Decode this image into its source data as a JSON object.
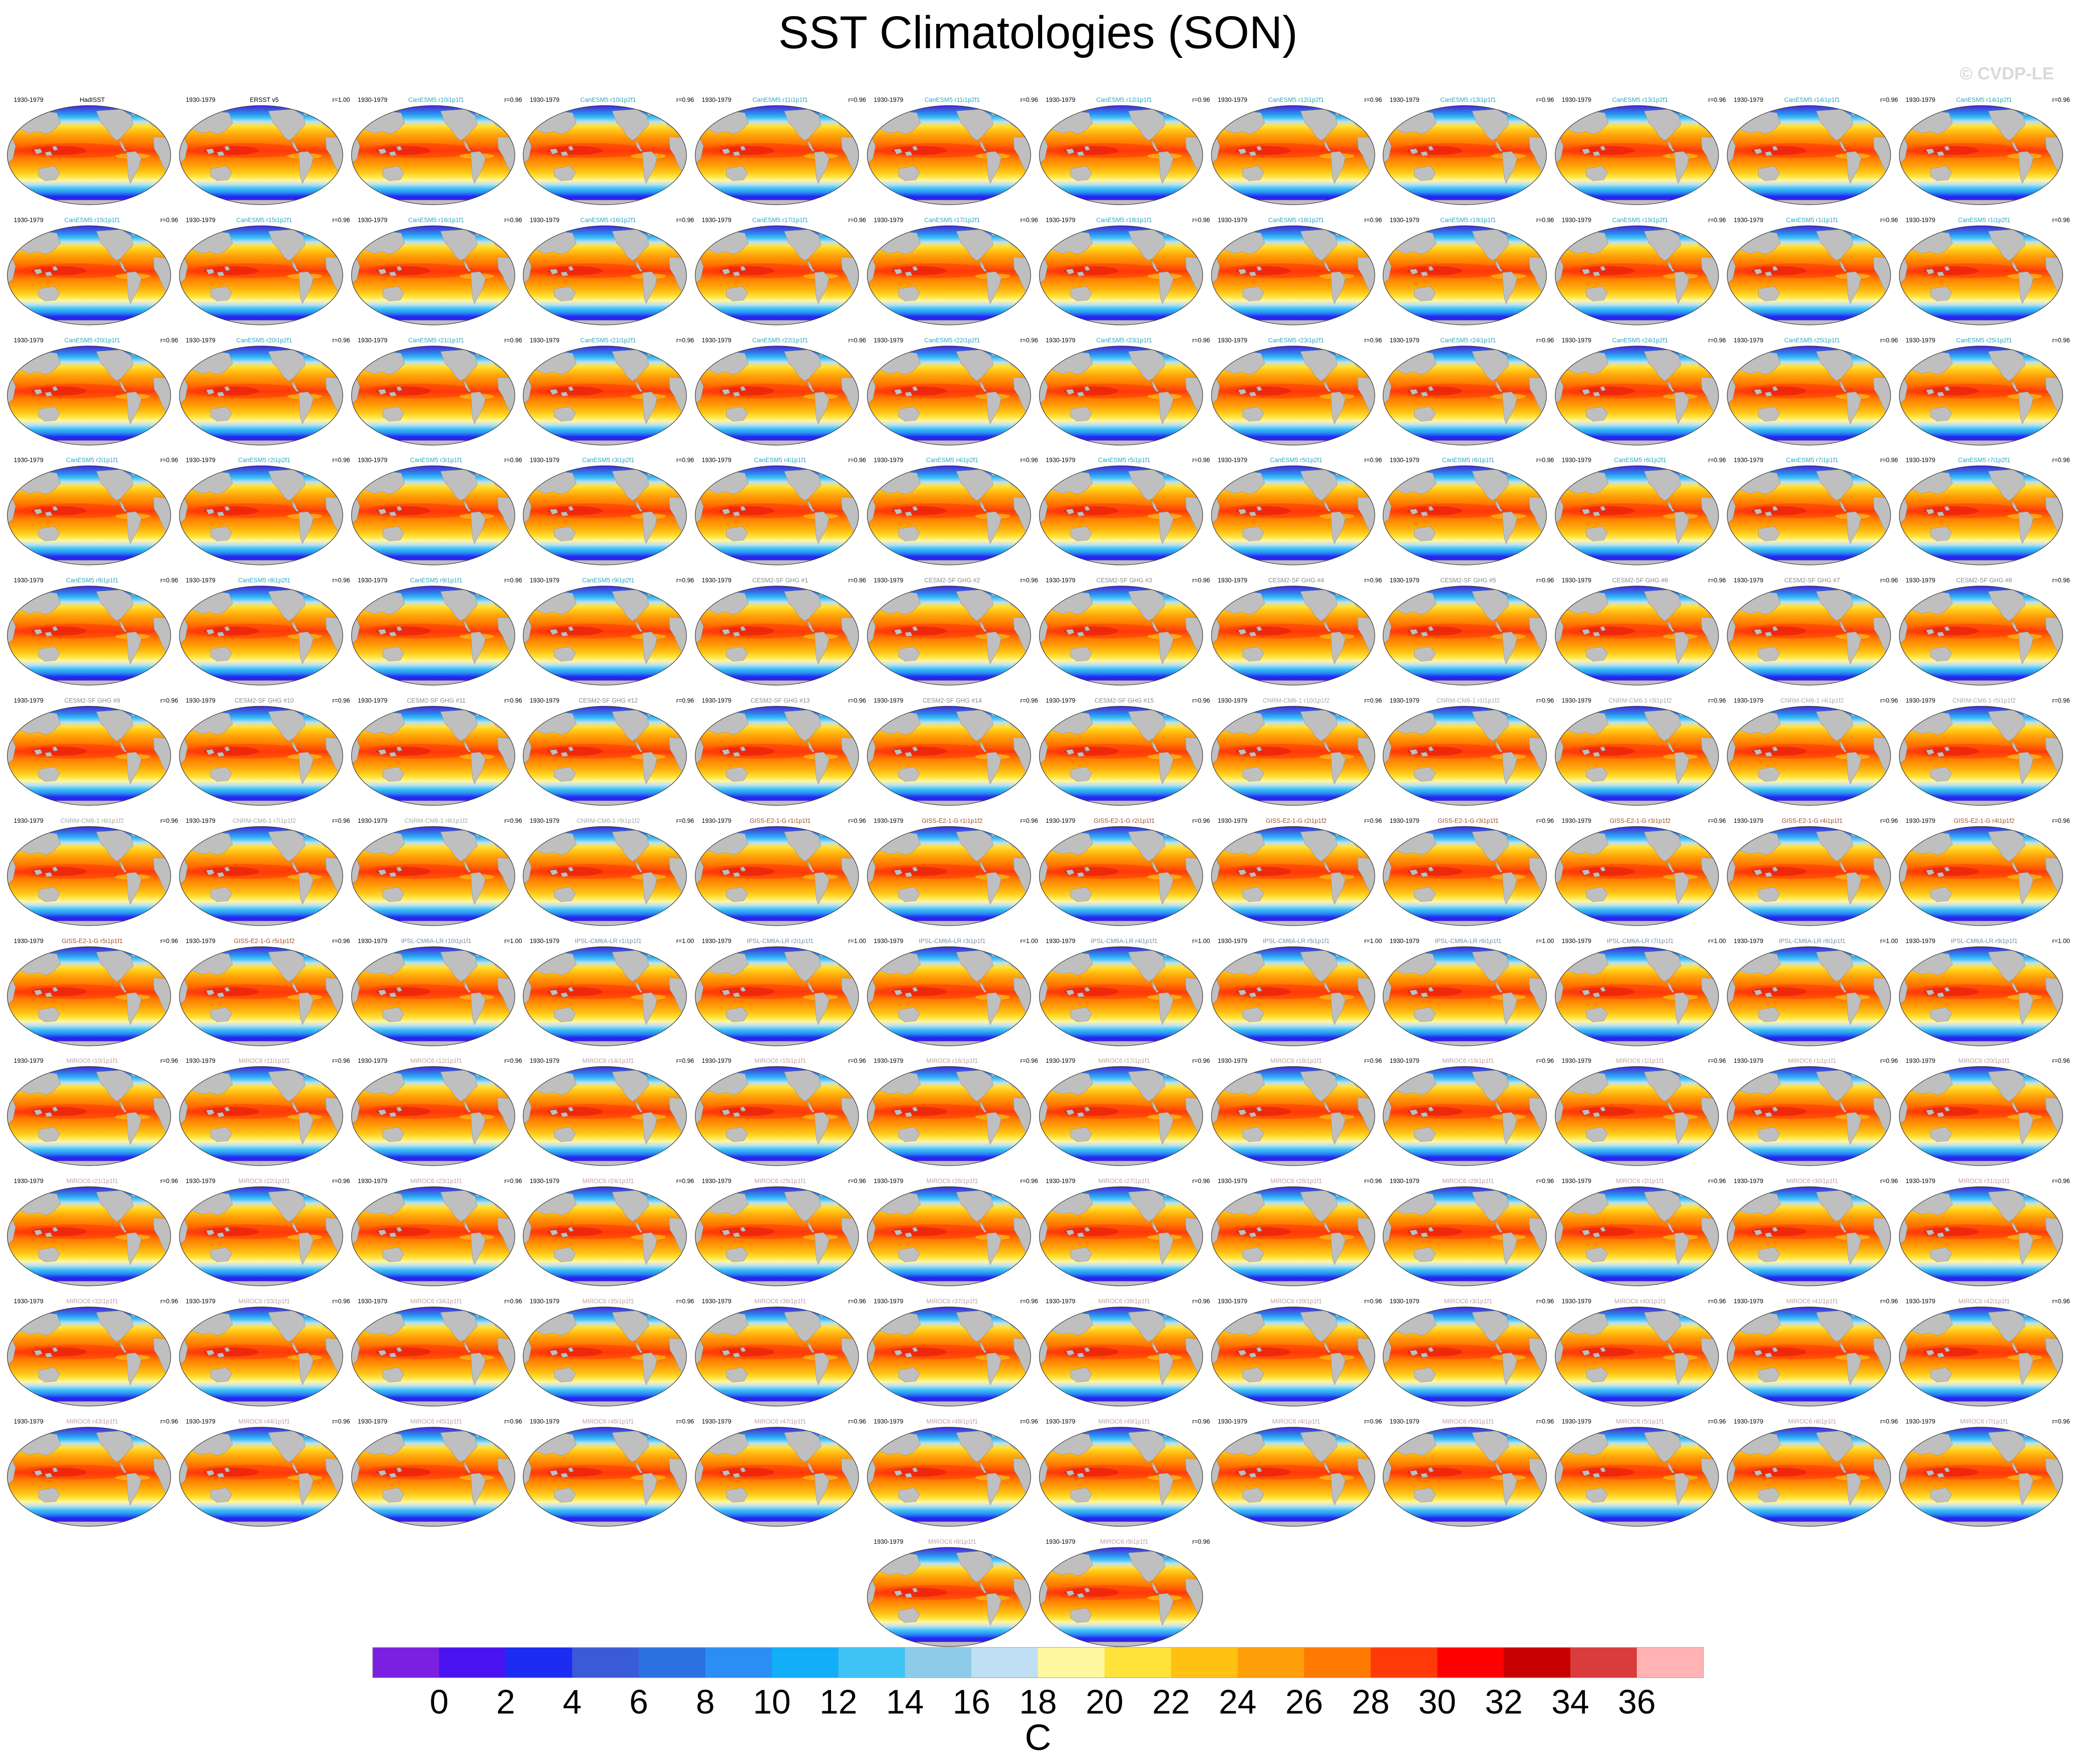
{
  "title": "SST Climatologies (SON)",
  "copyright": "© CVDP-LE",
  "period": "1930-1979",
  "colors": {
    "land": "#bfbfbf",
    "obs_title": "#000000",
    "CanESM5": "#2aa6c4",
    "CESM2-SF GHG": "#8a8a8a",
    "CNRM-CM6-1": "#a9a9a9",
    "GISS-E2-1-G": "#a0522d",
    "IPSL-CM6A-LR": "#7b8fa3",
    "MIROC6": "#c0a0a0"
  },
  "panels": [
    {
      "title": "HadISST",
      "family": "obs",
      "r": ""
    },
    {
      "title": "ERSST v5",
      "family": "obs",
      "r": "r=1.00"
    },
    {
      "title": "CanESM5 r10i1p1f1",
      "family": "CanESM5",
      "r": "r=0.96"
    },
    {
      "title": "CanESM5 r10i1p2f1",
      "family": "CanESM5",
      "r": "r=0.96"
    },
    {
      "title": "CanESM5 r11i1p1f1",
      "family": "CanESM5",
      "r": "r=0.96"
    },
    {
      "title": "CanESM5 r11i1p2f1",
      "family": "CanESM5",
      "r": "r=0.96"
    },
    {
      "title": "CanESM5 r12i1p1f1",
      "family": "CanESM5",
      "r": "r=0.96"
    },
    {
      "title": "CanESM5 r12i1p2f1",
      "family": "CanESM5",
      "r": "r=0.96"
    },
    {
      "title": "CanESM5 r13i1p1f1",
      "family": "CanESM5",
      "r": "r=0.96"
    },
    {
      "title": "CanESM5 r13i1p2f1",
      "family": "CanESM5",
      "r": "r=0.96"
    },
    {
      "title": "CanESM5 r14i1p1f1",
      "family": "CanESM5",
      "r": "r=0.96"
    },
    {
      "title": "CanESM5 r14i1p2f1",
      "family": "CanESM5",
      "r": "r=0.96"
    },
    {
      "title": "CanESM5 r15i1p1f1",
      "family": "CanESM5",
      "r": "r=0.96"
    },
    {
      "title": "CanESM5 r15i1p2f1",
      "family": "CanESM5",
      "r": "r=0.96"
    },
    {
      "title": "CanESM5 r16i1p1f1",
      "family": "CanESM5",
      "r": "r=0.96"
    },
    {
      "title": "CanESM5 r16i1p2f1",
      "family": "CanESM5",
      "r": "r=0.96"
    },
    {
      "title": "CanESM5 r17i1p1f1",
      "family": "CanESM5",
      "r": "r=0.96"
    },
    {
      "title": "CanESM5 r17i1p2f1",
      "family": "CanESM5",
      "r": "r=0.96"
    },
    {
      "title": "CanESM5 r18i1p1f1",
      "family": "CanESM5",
      "r": "r=0.96"
    },
    {
      "title": "CanESM5 r18i1p2f1",
      "family": "CanESM5",
      "r": "r=0.96"
    },
    {
      "title": "CanESM5 r19i1p1f1",
      "family": "CanESM5",
      "r": "r=0.96"
    },
    {
      "title": "CanESM5 r19i1p2f1",
      "family": "CanESM5",
      "r": "r=0.96"
    },
    {
      "title": "CanESM5 r1i1p1f1",
      "family": "CanESM5",
      "r": "r=0.96"
    },
    {
      "title": "CanESM5 r1i1p2f1",
      "family": "CanESM5",
      "r": "r=0.96"
    },
    {
      "title": "CanESM5 r20i1p1f1",
      "family": "CanESM5",
      "r": "r=0.96"
    },
    {
      "title": "CanESM5 r20i1p2f1",
      "family": "CanESM5",
      "r": "r=0.96"
    },
    {
      "title": "CanESM5 r21i1p1f1",
      "family": "CanESM5",
      "r": "r=0.96"
    },
    {
      "title": "CanESM5 r21i1p2f1",
      "family": "CanESM5",
      "r": "r=0.96"
    },
    {
      "title": "CanESM5 r22i1p1f1",
      "family": "CanESM5",
      "r": "r=0.96"
    },
    {
      "title": "CanESM5 r22i1p2f1",
      "family": "CanESM5",
      "r": "r=0.96"
    },
    {
      "title": "CanESM5 r23i1p1f1",
      "family": "CanESM5",
      "r": "r=0.96"
    },
    {
      "title": "CanESM5 r23i1p2f1",
      "family": "CanESM5",
      "r": "r=0.96"
    },
    {
      "title": "CanESM5 r24i1p1f1",
      "family": "CanESM5",
      "r": "r=0.96"
    },
    {
      "title": "CanESM5 r24i1p2f1",
      "family": "CanESM5",
      "r": "r=0.96"
    },
    {
      "title": "CanESM5 r25i1p1f1",
      "family": "CanESM5",
      "r": "r=0.96"
    },
    {
      "title": "CanESM5 r25i1p2f1",
      "family": "CanESM5",
      "r": "r=0.96"
    },
    {
      "title": "CanESM5 r2i1p1f1",
      "family": "CanESM5",
      "r": "r=0.96"
    },
    {
      "title": "CanESM5 r2i1p2f1",
      "family": "CanESM5",
      "r": "r=0.96"
    },
    {
      "title": "CanESM5 r3i1p1f1",
      "family": "CanESM5",
      "r": "r=0.96"
    },
    {
      "title": "CanESM5 r3i1p2f1",
      "family": "CanESM5",
      "r": "r=0.96"
    },
    {
      "title": "CanESM5 r4i1p1f1",
      "family": "CanESM5",
      "r": "r=0.96"
    },
    {
      "title": "CanESM5 r4i1p2f1",
      "family": "CanESM5",
      "r": "r=0.96"
    },
    {
      "title": "CanESM5 r5i1p1f1",
      "family": "CanESM5",
      "r": "r=0.96"
    },
    {
      "title": "CanESM5 r5i1p2f1",
      "family": "CanESM5",
      "r": "r=0.96"
    },
    {
      "title": "CanESM5 r6i1p1f1",
      "family": "CanESM5",
      "r": "r=0.96"
    },
    {
      "title": "CanESM5 r6i1p2f1",
      "family": "CanESM5",
      "r": "r=0.96"
    },
    {
      "title": "CanESM5 r7i1p1f1",
      "family": "CanESM5",
      "r": "r=0.96"
    },
    {
      "title": "CanESM5 r7i1p2f1",
      "family": "CanESM5",
      "r": "r=0.96"
    },
    {
      "title": "CanESM5 r8i1p1f1",
      "family": "CanESM5",
      "r": "r=0.96"
    },
    {
      "title": "CanESM5 r8i1p2f1",
      "family": "CanESM5",
      "r": "r=0.96"
    },
    {
      "title": "CanESM5 r9i1p1f1",
      "family": "CanESM5",
      "r": "r=0.96"
    },
    {
      "title": "CanESM5 r9i1p2f1",
      "family": "CanESM5",
      "r": "r=0.96"
    },
    {
      "title": "CESM2-SF GHG #1",
      "family": "CESM2-SF GHG",
      "r": "r=0.96"
    },
    {
      "title": "CESM2-SF GHG #2",
      "family": "CESM2-SF GHG",
      "r": "r=0.96"
    },
    {
      "title": "CESM2-SF GHG #3",
      "family": "CESM2-SF GHG",
      "r": "r=0.96"
    },
    {
      "title": "CESM2-SF GHG #4",
      "family": "CESM2-SF GHG",
      "r": "r=0.96"
    },
    {
      "title": "CESM2-SF GHG #5",
      "family": "CESM2-SF GHG",
      "r": "r=0.96"
    },
    {
      "title": "CESM2-SF GHG #6",
      "family": "CESM2-SF GHG",
      "r": "r=0.96"
    },
    {
      "title": "CESM2-SF GHG #7",
      "family": "CESM2-SF GHG",
      "r": "r=0.96"
    },
    {
      "title": "CESM2-SF GHG #8",
      "family": "CESM2-SF GHG",
      "r": "r=0.96"
    },
    {
      "title": "CESM2-SF GHG #9",
      "family": "CESM2-SF GHG",
      "r": "r=0.96"
    },
    {
      "title": "CESM2-SF GHG #10",
      "family": "CESM2-SF GHG",
      "r": "r=0.96"
    },
    {
      "title": "CESM2-SF GHG #11",
      "family": "CESM2-SF GHG",
      "r": "r=0.96"
    },
    {
      "title": "CESM2-SF GHG #12",
      "family": "CESM2-SF GHG",
      "r": "r=0.96"
    },
    {
      "title": "CESM2-SF GHG #13",
      "family": "CESM2-SF GHG",
      "r": "r=0.96"
    },
    {
      "title": "CESM2-SF GHG #14",
      "family": "CESM2-SF GHG",
      "r": "r=0.96"
    },
    {
      "title": "CESM2-SF GHG #15",
      "family": "CESM2-SF GHG",
      "r": "r=0.96"
    },
    {
      "title": "CNRM-CM6-1 r10i1p1f2",
      "family": "CNRM-CM6-1",
      "r": "r=0.96"
    },
    {
      "title": "CNRM-CM6-1 r1i1p1f2",
      "family": "CNRM-CM6-1",
      "r": "r=0.96"
    },
    {
      "title": "CNRM-CM6-1 r3i1p1f2",
      "family": "CNRM-CM6-1",
      "r": "r=0.96"
    },
    {
      "title": "CNRM-CM6-1 r4i1p1f2",
      "family": "CNRM-CM6-1",
      "r": "r=0.96"
    },
    {
      "title": "CNRM-CM6-1 r5i1p1f2",
      "family": "CNRM-CM6-1",
      "r": "r=0.96"
    },
    {
      "title": "CNRM-CM6-1 r6i1p1f2",
      "family": "CNRM-CM6-1",
      "r": "r=0.96"
    },
    {
      "title": "CNRM-CM6-1 r7i1p1f2",
      "family": "CNRM-CM6-1",
      "r": "r=0.96"
    },
    {
      "title": "CNRM-CM6-1 r8i1p1f2",
      "family": "CNRM-CM6-1",
      "r": "r=0.96"
    },
    {
      "title": "CNRM-CM6-1 r9i1p1f2",
      "family": "CNRM-CM6-1",
      "r": "r=0.96"
    },
    {
      "title": "GISS-E2-1-G r1i1p1f1",
      "family": "GISS-E2-1-G",
      "r": "r=0.96"
    },
    {
      "title": "GISS-E2-1-G r1i1p1f2",
      "family": "GISS-E2-1-G",
      "r": "r=0.96"
    },
    {
      "title": "GISS-E2-1-G r2i1p1f1",
      "family": "GISS-E2-1-G",
      "r": "r=0.96"
    },
    {
      "title": "GISS-E2-1-G r2i1p1f2",
      "family": "GISS-E2-1-G",
      "r": "r=0.96"
    },
    {
      "title": "GISS-E2-1-G r3i1p1f1",
      "family": "GISS-E2-1-G",
      "r": "r=0.96"
    },
    {
      "title": "GISS-E2-1-G r3i1p1f2",
      "family": "GISS-E2-1-G",
      "r": "r=0.96"
    },
    {
      "title": "GISS-E2-1-G r4i1p1f1",
      "family": "GISS-E2-1-G",
      "r": "r=0.96"
    },
    {
      "title": "GISS-E2-1-G r4i1p1f2",
      "family": "GISS-E2-1-G",
      "r": "r=0.96"
    },
    {
      "title": "GISS-E2-1-G r5i1p1f1",
      "family": "GISS-E2-1-G",
      "r": "r=0.96"
    },
    {
      "title": "GISS-E2-1-G r5i1p1f2",
      "family": "GISS-E2-1-G",
      "r": "r=0.96"
    },
    {
      "title": "IPSL-CM6A-LR r10i1p1f1",
      "family": "IPSL-CM6A-LR",
      "r": "r=1.00"
    },
    {
      "title": "IPSL-CM6A-LR r1i1p1f1",
      "family": "IPSL-CM6A-LR",
      "r": "r=1.00"
    },
    {
      "title": "IPSL-CM6A-LR r2i1p1f1",
      "family": "IPSL-CM6A-LR",
      "r": "r=1.00"
    },
    {
      "title": "IPSL-CM6A-LR r3i1p1f1",
      "family": "IPSL-CM6A-LR",
      "r": "r=1.00"
    },
    {
      "title": "IPSL-CM6A-LR r4i1p1f1",
      "family": "IPSL-CM6A-LR",
      "r": "r=1.00"
    },
    {
      "title": "IPSL-CM6A-LR r5i1p1f1",
      "family": "IPSL-CM6A-LR",
      "r": "r=1.00"
    },
    {
      "title": "IPSL-CM6A-LR r6i1p1f1",
      "family": "IPSL-CM6A-LR",
      "r": "r=1.00"
    },
    {
      "title": "IPSL-CM6A-LR r7i1p1f1",
      "family": "IPSL-CM6A-LR",
      "r": "r=1.00"
    },
    {
      "title": "IPSL-CM6A-LR r8i1p1f1",
      "family": "IPSL-CM6A-LR",
      "r": "r=1.00"
    },
    {
      "title": "IPSL-CM6A-LR r9i1p1f1",
      "family": "IPSL-CM6A-LR",
      "r": "r=1.00"
    },
    {
      "title": "MIROC6 r10i1p1f1",
      "family": "MIROC6",
      "r": "r=0.96"
    },
    {
      "title": "MIROC6 r11i1p1f1",
      "family": "MIROC6",
      "r": "r=0.96"
    },
    {
      "title": "MIROC6 r12i1p1f1",
      "family": "MIROC6",
      "r": "r=0.96"
    },
    {
      "title": "MIROC6 r14i1p1f1",
      "family": "MIROC6",
      "r": "r=0.96"
    },
    {
      "title": "MIROC6 r15i1p1f1",
      "family": "MIROC6",
      "r": "r=0.96"
    },
    {
      "title": "MIROC6 r16i1p1f1",
      "family": "MIROC6",
      "r": "r=0.96"
    },
    {
      "title": "MIROC6 r17i1p1f1",
      "family": "MIROC6",
      "r": "r=0.96"
    },
    {
      "title": "MIROC6 r18i1p1f1",
      "family": "MIROC6",
      "r": "r=0.96"
    },
    {
      "title": "MIROC6 r19i1p1f1",
      "family": "MIROC6",
      "r": "r=0.96"
    },
    {
      "title": "MIROC6 r1i1p1f1",
      "family": "MIROC6",
      "r": "r=0.96"
    },
    {
      "title": "MIROC6 r1i1p1f1",
      "family": "MIROC6",
      "r": "r=0.96"
    },
    {
      "title": "MIROC6 r20i1p1f1",
      "family": "MIROC6",
      "r": "r=0.96"
    },
    {
      "title": "MIROC6 r21i1p1f1",
      "family": "MIROC6",
      "r": "r=0.96"
    },
    {
      "title": "MIROC6 r22i1p1f1",
      "family": "MIROC6",
      "r": "r=0.96"
    },
    {
      "title": "MIROC6 r23i1p1f1",
      "family": "MIROC6",
      "r": "r=0.96"
    },
    {
      "title": "MIROC6 r24i1p1f1",
      "family": "MIROC6",
      "r": "r=0.96"
    },
    {
      "title": "MIROC6 r25i1p1f1",
      "family": "MIROC6",
      "r": "r=0.96"
    },
    {
      "title": "MIROC6 r26i1p1f1",
      "family": "MIROC6",
      "r": "r=0.96"
    },
    {
      "title": "MIROC6 r27i1p1f1",
      "family": "MIROC6",
      "r": "r=0.96"
    },
    {
      "title": "MIROC6 r28i1p1f1",
      "family": "MIROC6",
      "r": "r=0.96"
    },
    {
      "title": "MIROC6 r29i1p1f1",
      "family": "MIROC6",
      "r": "r=0.96"
    },
    {
      "title": "MIROC6 r2i1p1f1",
      "family": "MIROC6",
      "r": "r=0.96"
    },
    {
      "title": "MIROC6 r30i1p1f1",
      "family": "MIROC6",
      "r": "r=0.96"
    },
    {
      "title": "MIROC6 r31i1p1f1",
      "family": "MIROC6",
      "r": "r=0.96"
    },
    {
      "title": "MIROC6 r32i1p1f1",
      "family": "MIROC6",
      "r": "r=0.96"
    },
    {
      "title": "MIROC6 r33i1p1f1",
      "family": "MIROC6",
      "r": "r=0.96"
    },
    {
      "title": "MIROC6 r34i1p1f1",
      "family": "MIROC6",
      "r": "r=0.96"
    },
    {
      "title": "MIROC6 r35i1p1f1",
      "family": "MIROC6",
      "r": "r=0.96"
    },
    {
      "title": "MIROC6 r36i1p1f1",
      "family": "MIROC6",
      "r": "r=0.96"
    },
    {
      "title": "MIROC6 r37i1p1f1",
      "family": "MIROC6",
      "r": "r=0.96"
    },
    {
      "title": "MIROC6 r38i1p1f1",
      "family": "MIROC6",
      "r": "r=0.96"
    },
    {
      "title": "MIROC6 r39i1p1f1",
      "family": "MIROC6",
      "r": "r=0.96"
    },
    {
      "title": "MIROC6 r3i1p1f1",
      "family": "MIROC6",
      "r": "r=0.96"
    },
    {
      "title": "MIROC6 r40i1p1f1",
      "family": "MIROC6",
      "r": "r=0.96"
    },
    {
      "title": "MIROC6 r41i1p1f1",
      "family": "MIROC6",
      "r": "r=0.96"
    },
    {
      "title": "MIROC6 r42i1p1f1",
      "family": "MIROC6",
      "r": "r=0.96"
    },
    {
      "title": "MIROC6 r43i1p1f1",
      "family": "MIROC6",
      "r": "r=0.96"
    },
    {
      "title": "MIROC6 r44i1p1f1",
      "family": "MIROC6",
      "r": "r=0.96"
    },
    {
      "title": "MIROC6 r45i1p1f1",
      "family": "MIROC6",
      "r": "r=0.96"
    },
    {
      "title": "MIROC6 r46i1p1f1",
      "family": "MIROC6",
      "r": "r=0.96"
    },
    {
      "title": "MIROC6 r47i1p1f1",
      "family": "MIROC6",
      "r": "r=0.96"
    },
    {
      "title": "MIROC6 r48i1p1f1",
      "family": "MIROC6",
      "r": "r=0.96"
    },
    {
      "title": "MIROC6 r49i1p1f1",
      "family": "MIROC6",
      "r": "r=0.96"
    },
    {
      "title": "MIROC6 r4i1p1f1",
      "family": "MIROC6",
      "r": "r=0.96"
    },
    {
      "title": "MIROC6 r50i1p1f1",
      "family": "MIROC6",
      "r": "r=0.96"
    },
    {
      "title": "MIROC6 r5i1p1f1",
      "family": "MIROC6",
      "r": "r=0.96"
    },
    {
      "title": "MIROC6 r6i1p1f1",
      "family": "MIROC6",
      "r": "r=0.96"
    },
    {
      "title": "MIROC6 r7i1p1f1",
      "family": "MIROC6",
      "r": "r=0.96"
    },
    {
      "title": "MIROC6 r8i1p1f1",
      "family": "MIROC6",
      "r": ""
    },
    {
      "title": "MIROC6 r9i1p1f1",
      "family": "MIROC6",
      "r": "r=0.96"
    }
  ],
  "colorbar": {
    "colors": [
      "#7b1fe0",
      "#4a14f0",
      "#1c2cf0",
      "#3a5bd8",
      "#2c71e0",
      "#2a8ef5",
      "#12aef8",
      "#3fc3f5",
      "#8ecbe8",
      "#bfe0f2",
      "#fff7a0",
      "#ffe23a",
      "#ffc112",
      "#ff9f0a",
      "#ff7a00",
      "#ff3a0a",
      "#ff0000",
      "#c80000",
      "#d83c3c",
      "#ffb3b3"
    ],
    "labels": [
      "0",
      "2",
      "4",
      "6",
      "8",
      "10",
      "12",
      "14",
      "16",
      "18",
      "20",
      "22",
      "24",
      "26",
      "28",
      "30",
      "32",
      "34",
      "36"
    ],
    "unit": "C"
  },
  "chart_data": {
    "type": "heatmap",
    "title": "SST Climatologies (SON)",
    "season": "SON",
    "period": "1930-1979",
    "variable": "SST",
    "units": "C",
    "colorbar_levels": [
      0,
      2,
      4,
      6,
      8,
      10,
      12,
      14,
      16,
      18,
      20,
      22,
      24,
      26,
      28,
      30,
      32,
      34,
      36
    ],
    "panel_count": 146
  }
}
